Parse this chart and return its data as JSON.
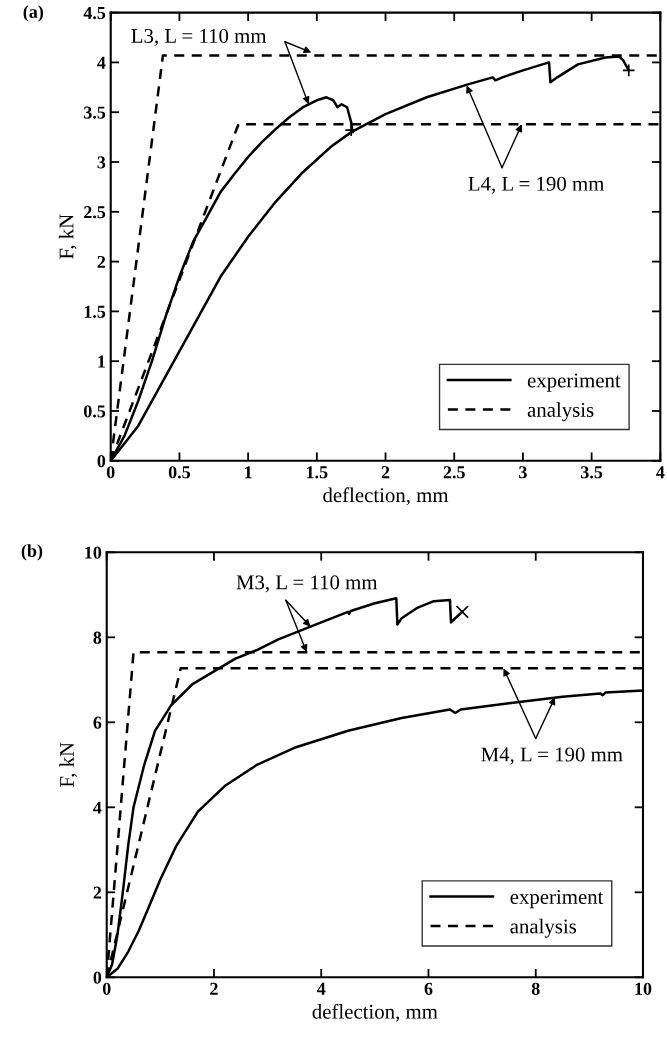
{
  "chart_data": [
    {
      "type": "line",
      "title": "(a)",
      "xlabel": "deflection, mm",
      "ylabel": "F, kN",
      "xlim": [
        0,
        4
      ],
      "ylim": [
        0,
        4.5
      ],
      "xticks": [
        0,
        0.5,
        1,
        1.5,
        2,
        2.5,
        3,
        3.5,
        4
      ],
      "yticks": [
        0,
        0.5,
        1,
        1.5,
        2,
        2.5,
        3,
        3.5,
        4,
        4.5
      ],
      "grid": false,
      "legend": "bottom right",
      "marker": "none",
      "series": [
        {
          "name": "experiment",
          "color": "#000000",
          "line_style": "solid",
          "x": [
            0,
            0.1,
            0.2,
            0.3,
            0.4,
            0.5,
            0.6,
            0.7,
            0.8,
            0.9,
            1.0,
            1.1,
            1.2,
            1.3,
            1.4,
            1.5,
            1.57,
            1.62,
            1.65,
            1.68,
            1.72,
            1.75,
            1.76
          ],
          "values": [
            0,
            0.25,
            0.6,
            1.0,
            1.45,
            1.85,
            2.2,
            2.45,
            2.7,
            2.88,
            3.05,
            3.2,
            3.33,
            3.45,
            3.55,
            3.62,
            3.65,
            3.62,
            3.55,
            3.58,
            3.55,
            3.4,
            3.3
          ]
        },
        {
          "color": "#000000",
          "line_style": "solid",
          "x": [
            0,
            0.2,
            0.4,
            0.6,
            0.8,
            1.0,
            1.2,
            1.4,
            1.6,
            1.75,
            2.0,
            2.3,
            2.6,
            2.78,
            2.8,
            2.85,
            3.0,
            3.19,
            3.2,
            3.25,
            3.4,
            3.6,
            3.7,
            3.73,
            3.77
          ],
          "values": [
            0,
            0.35,
            0.85,
            1.35,
            1.85,
            2.25,
            2.6,
            2.9,
            3.15,
            3.3,
            3.48,
            3.65,
            3.78,
            3.85,
            3.82,
            3.85,
            3.92,
            4.0,
            3.8,
            3.85,
            3.98,
            4.05,
            4.06,
            4.02,
            3.92
          ]
        },
        {
          "name": "analysis",
          "color": "#000000",
          "line_style": "dashed",
          "x": [
            0,
            0.38,
            4
          ],
          "values": [
            0,
            4.07,
            4.07
          ]
        },
        {
          "color": "#000000",
          "line_style": "dashed",
          "x": [
            0,
            0.93,
            4
          ],
          "values": [
            0,
            3.38,
            3.38
          ]
        },
        {
          "type": "scatter",
          "color": "#000000",
          "marker": "plus",
          "x": [
            1.75,
            3.77
          ],
          "values": [
            3.32,
            3.92
          ]
        }
      ],
      "annotations": [
        {
          "text": "L3, L = 110 mm",
          "x": 1.44,
          "y": 3.58
        },
        {
          "text": "L4, L = 190 mm",
          "x": 2.59,
          "y": 3.77
        }
      ]
    },
    {
      "type": "line",
      "title": "(b)",
      "xlabel": "deflection, mm",
      "ylabel": "F, kN",
      "xlim": [
        0,
        10
      ],
      "ylim": [
        0,
        10
      ],
      "xticks": [
        0,
        2,
        4,
        6,
        8,
        10
      ],
      "yticks": [
        0,
        2,
        4,
        6,
        8,
        10
      ],
      "grid": false,
      "legend": "bottom right",
      "marker": "none",
      "series": [
        {
          "name": "experiment",
          "color": "#000000",
          "line_style": "solid",
          "x": [
            0,
            0.1,
            0.2,
            0.3,
            0.4,
            0.5,
            0.7,
            0.9,
            1.2,
            1.6,
            2.0,
            2.4,
            2.8,
            3.2,
            3.6,
            4.0,
            4.5,
            4.52,
            4.55,
            5.0,
            5.4,
            5.42,
            5.5,
            5.8,
            6.1,
            6.4,
            6.42,
            6.5,
            6.63
          ],
          "values": [
            0,
            0.3,
            1.0,
            2.0,
            3.1,
            4.0,
            5.0,
            5.8,
            6.4,
            6.9,
            7.2,
            7.5,
            7.7,
            7.95,
            8.15,
            8.35,
            8.6,
            8.55,
            8.62,
            8.8,
            8.92,
            8.3,
            8.45,
            8.7,
            8.85,
            8.88,
            8.35,
            8.45,
            8.6
          ]
        },
        {
          "color": "#000000",
          "line_style": "solid",
          "x": [
            0,
            0.2,
            0.4,
            0.6,
            0.8,
            1.0,
            1.3,
            1.7,
            2.2,
            2.8,
            3.5,
            4.5,
            5.5,
            6.4,
            6.5,
            6.6,
            7.5,
            8.5,
            9.2,
            9.25,
            9.3,
            10
          ],
          "values": [
            0,
            0.2,
            0.6,
            1.1,
            1.7,
            2.3,
            3.1,
            3.9,
            4.5,
            5.0,
            5.4,
            5.8,
            6.1,
            6.3,
            6.22,
            6.3,
            6.45,
            6.6,
            6.68,
            6.64,
            6.7,
            6.75
          ]
        },
        {
          "name": "analysis",
          "color": "#000000",
          "line_style": "dashed",
          "x": [
            0,
            0.5,
            10
          ],
          "values": [
            0,
            7.65,
            7.65
          ]
        },
        {
          "color": "#000000",
          "line_style": "dashed",
          "x": [
            0,
            1.38,
            10
          ],
          "values": [
            0,
            7.27,
            7.27
          ]
        },
        {
          "type": "scatter",
          "color": "#000000",
          "marker": "cross",
          "x": [
            6.63
          ],
          "values": [
            8.6
          ]
        }
      ],
      "annotations": [
        {
          "text": "M3, L = 110 mm",
          "x": 3.8,
          "y": 8.25
        },
        {
          "text": "M4, L = 190 mm",
          "x": 8.36,
          "y": 6.59
        }
      ]
    }
  ]
}
